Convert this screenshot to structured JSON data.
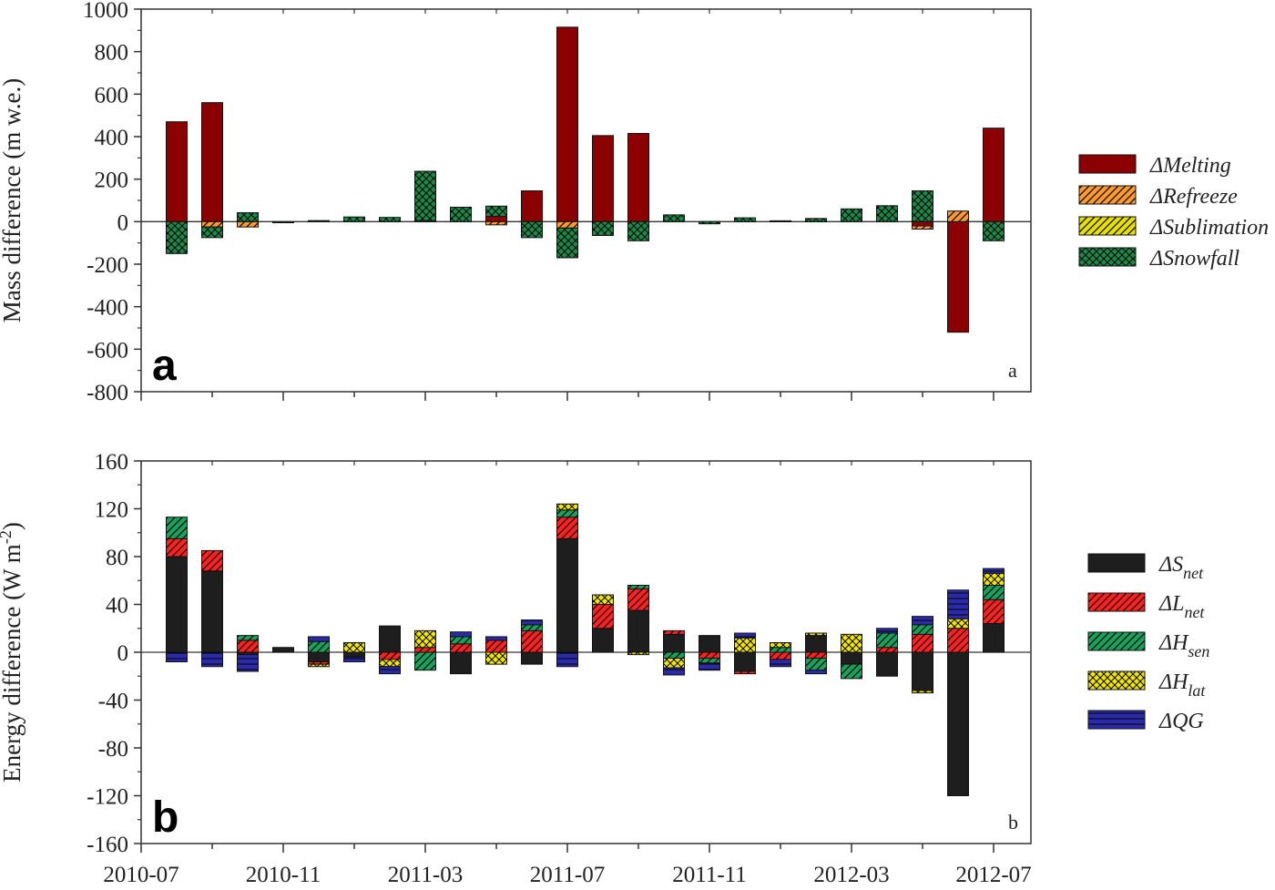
{
  "chart_data": [
    {
      "type": "bar",
      "stacked": true,
      "panel_letter": "a",
      "panel_corner_label": "a",
      "title": "",
      "xlabel": "",
      "ylabel": "Mass difference (m w.e.)",
      "ylim": [
        -800,
        1000
      ],
      "yticks": [
        1000,
        800,
        600,
        400,
        200,
        0,
        -200,
        -400,
        -600,
        -800
      ],
      "xtick_labels": [
        "2010-07",
        "2010-11",
        "2011-03",
        "2011-07",
        "2011-11",
        "2012-03",
        "2012-07"
      ],
      "grid": false,
      "legend_position": "right",
      "categories": [
        "2010-08",
        "2010-09",
        "2010-10",
        "2010-11",
        "2010-12",
        "2011-01",
        "2011-02",
        "2011-03",
        "2011-04",
        "2011-05",
        "2011-06",
        "2011-07",
        "2011-08",
        "2011-09",
        "2011-10",
        "2011-11",
        "2011-12",
        "2012-01",
        "2012-02",
        "2012-03",
        "2012-04",
        "2012-05",
        "2012-06",
        "2012-07"
      ],
      "series": [
        {
          "name": "ΔMelting",
          "color": "#8B0000",
          "pattern": "solid",
          "values": [
            470,
            560,
            0,
            0,
            0,
            0,
            0,
            0,
            0,
            25,
            145,
            915,
            405,
            415,
            0,
            0,
            0,
            0,
            0,
            0,
            0,
            -20,
            -520,
            440
          ]
        },
        {
          "name": "ΔRefreeze",
          "color": "#FF9A2E",
          "pattern": "diag",
          "values": [
            0,
            -25,
            -25,
            0,
            0,
            0,
            0,
            5,
            0,
            -15,
            0,
            -30,
            0,
            0,
            0,
            0,
            0,
            4,
            0,
            0,
            0,
            -15,
            50,
            0
          ]
        },
        {
          "name": "ΔSublimation",
          "color": "#E8E000",
          "pattern": "diag",
          "values": [
            0,
            0,
            0,
            0,
            0,
            0,
            0,
            0,
            0,
            0,
            0,
            0,
            0,
            0,
            0,
            0,
            0,
            0,
            0,
            0,
            0,
            0,
            0,
            0
          ]
        },
        {
          "name": "ΔSnowfall",
          "color": "#1A8A4A",
          "pattern": "cross",
          "values": [
            -150,
            -50,
            42,
            -5,
            5,
            22,
            20,
            232,
            68,
            48,
            -75,
            -140,
            -65,
            -90,
            32,
            -10,
            18,
            0,
            15,
            60,
            75,
            145,
            0,
            -90
          ]
        }
      ]
    },
    {
      "type": "bar",
      "stacked": true,
      "panel_letter": "b",
      "panel_corner_label": "b",
      "title": "",
      "xlabel": "",
      "ylabel": "Energy difference (W m-2)",
      "ylabel_main": "Energy difference (W m",
      "ylabel_sup": "-2",
      "ylabel_end": ")",
      "ylim": [
        -160,
        160
      ],
      "yticks": [
        160,
        120,
        80,
        40,
        0,
        -40,
        -80,
        -120,
        -160
      ],
      "xtick_labels": [
        "2010-07",
        "2010-11",
        "2011-03",
        "2011-07",
        "2011-11",
        "2012-03",
        "2012-07"
      ],
      "grid": false,
      "legend_position": "right",
      "categories": [
        "2010-08",
        "2010-09",
        "2010-10",
        "2010-11",
        "2010-12",
        "2011-01",
        "2011-02",
        "2011-03",
        "2011-04",
        "2011-05",
        "2011-06",
        "2011-07",
        "2011-08",
        "2011-09",
        "2011-10",
        "2011-11",
        "2011-12",
        "2012-01",
        "2012-02",
        "2012-03",
        "2012-04",
        "2012-05",
        "2012-06",
        "2012-07"
      ],
      "series": [
        {
          "name": "ΔSnet",
          "label_main": "ΔS",
          "label_sub": "net",
          "color": "#1E1E1E",
          "pattern": "solid",
          "values": [
            80,
            68,
            -2,
            4,
            -8,
            -4,
            22,
            0,
            -18,
            0,
            -10,
            95,
            20,
            35,
            15,
            14,
            -16,
            0,
            14,
            -10,
            -20,
            -32,
            -120,
            24
          ]
        },
        {
          "name": "ΔLnet",
          "label_main": "ΔL",
          "label_sub": "net",
          "color": "#FF2020",
          "pattern": "diag",
          "values": [
            15,
            17,
            10,
            0,
            -2,
            0,
            -6,
            4,
            7,
            10,
            18,
            18,
            20,
            18,
            3,
            -5,
            -2,
            -6,
            -5,
            0,
            4,
            15,
            20,
            20
          ]
        },
        {
          "name": "ΔHsen",
          "label_main": "ΔH",
          "label_sub": "sen",
          "color": "#17A35B",
          "pattern": "diag",
          "values": [
            18,
            0,
            4,
            0,
            9,
            0,
            0,
            -15,
            6,
            0,
            5,
            6,
            0,
            3,
            -5,
            -4,
            0,
            4,
            -10,
            -12,
            12,
            8,
            0,
            12
          ]
        },
        {
          "name": "ΔHlat",
          "label_main": "ΔH",
          "label_sub": "lat",
          "color": "#F2E600",
          "pattern": "cross",
          "values": [
            0,
            0,
            0,
            0,
            -2,
            8,
            -6,
            14,
            0,
            -10,
            0,
            5,
            8,
            -2,
            -8,
            0,
            12,
            4,
            2,
            15,
            0,
            -2,
            8,
            10
          ]
        },
        {
          "name": "ΔQG",
          "label_main": "ΔQG",
          "label_sub": "",
          "color": "#2B2BAA",
          "pattern": "hbars",
          "values": [
            -8,
            -12,
            -14,
            0,
            4,
            -4,
            -6,
            0,
            4,
            3,
            4,
            -12,
            0,
            0,
            -6,
            -6,
            4,
            -6,
            -3,
            0,
            4,
            7,
            24,
            4
          ]
        }
      ]
    }
  ]
}
